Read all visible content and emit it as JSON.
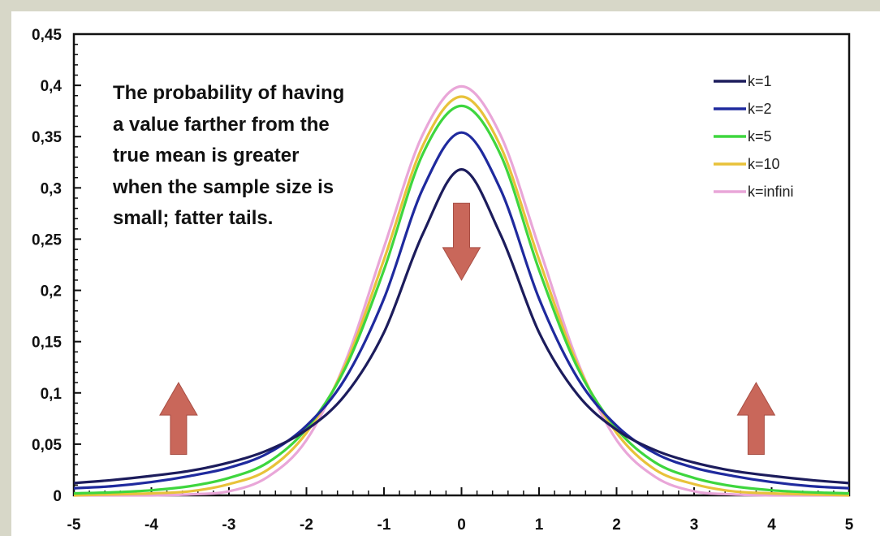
{
  "chart_data": {
    "type": "line",
    "title": "",
    "xlabel": "",
    "ylabel": "",
    "xlim": [
      -5,
      5
    ],
    "ylim": [
      0,
      0.45
    ],
    "x_ticks": [
      "-5",
      "-4",
      "-3",
      "-2",
      "-1",
      "0",
      "1",
      "2",
      "3",
      "4",
      "5"
    ],
    "y_ticks": [
      "0",
      "0,05",
      "0,1",
      "0,15",
      "0,2",
      "0,25",
      "0,3",
      "0,35",
      "0,4",
      "0,45"
    ],
    "x": [
      -5,
      -4.5,
      -4,
      -3.5,
      -3,
      -2.5,
      -2,
      -1.5,
      -1,
      -0.5,
      0,
      0.5,
      1,
      1.5,
      2,
      2.5,
      3,
      3.5,
      4,
      4.5,
      5
    ],
    "series": [
      {
        "name": "k=1",
        "color": "#1c1c5c",
        "values": [
          0.012,
          0.015,
          0.019,
          0.024,
          0.032,
          0.044,
          0.064,
          0.098,
          0.159,
          0.255,
          0.318,
          0.255,
          0.159,
          0.098,
          0.064,
          0.044,
          0.032,
          0.024,
          0.019,
          0.015,
          0.012
        ]
      },
      {
        "name": "k=2",
        "color": "#1f2a9e",
        "values": [
          0.007,
          0.009,
          0.013,
          0.019,
          0.027,
          0.041,
          0.068,
          0.114,
          0.192,
          0.299,
          0.354,
          0.299,
          0.192,
          0.114,
          0.068,
          0.041,
          0.027,
          0.019,
          0.013,
          0.009,
          0.007
        ]
      },
      {
        "name": "k=5",
        "color": "#3ed63e",
        "values": [
          0.002,
          0.003,
          0.005,
          0.009,
          0.017,
          0.032,
          0.065,
          0.124,
          0.22,
          0.333,
          0.38,
          0.333,
          0.22,
          0.124,
          0.065,
          0.032,
          0.017,
          0.009,
          0.005,
          0.003,
          0.002
        ]
      },
      {
        "name": "k=10",
        "color": "#e8c23a",
        "values": [
          0.0,
          0.001,
          0.002,
          0.004,
          0.011,
          0.025,
          0.061,
          0.127,
          0.23,
          0.341,
          0.389,
          0.341,
          0.23,
          0.127,
          0.061,
          0.025,
          0.011,
          0.004,
          0.002,
          0.001,
          0.0
        ]
      },
      {
        "name": "k=infini",
        "color": "#e9a6d8",
        "values": [
          0.0,
          0.0,
          0.0,
          0.001,
          0.004,
          0.018,
          0.054,
          0.13,
          0.242,
          0.352,
          0.399,
          0.352,
          0.242,
          0.13,
          0.054,
          0.018,
          0.004,
          0.001,
          0.0,
          0.0,
          0.0
        ]
      }
    ],
    "legend_position": "top-right",
    "grid": false,
    "annotation_lines": [
      "The probability of having",
      "a value farther from the",
      "true mean is greater",
      "when the sample size is",
      "small; fatter tails."
    ],
    "arrows": [
      {
        "x": -3.65,
        "from_y": 0.04,
        "to_y": 0.11,
        "direction": "up",
        "color": "#c9675a"
      },
      {
        "x": 0.0,
        "from_y": 0.285,
        "to_y": 0.21,
        "direction": "down",
        "color": "#c9675a"
      },
      {
        "x": 3.8,
        "from_y": 0.04,
        "to_y": 0.11,
        "direction": "up",
        "color": "#c9675a"
      }
    ]
  }
}
